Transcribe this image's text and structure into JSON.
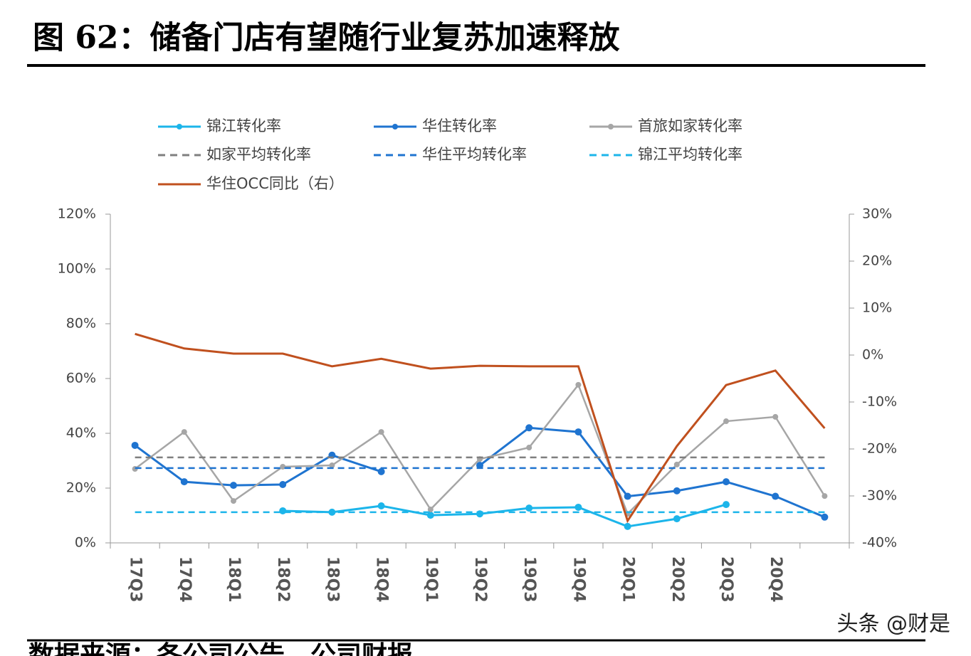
{
  "title": "图 62：储备门店有望随行业复苏加速释放",
  "source": "数据来源：各公司公告，公司财报",
  "watermark": "头条 @财是",
  "chart_data": {
    "type": "line",
    "categories": [
      "17Q3",
      "17Q4",
      "18Q1",
      "18Q2",
      "18Q3",
      "18Q4",
      "19Q1",
      "19Q2",
      "19Q3",
      "19Q4",
      "20Q1",
      "20Q2",
      "20Q3",
      "20Q4",
      null
    ],
    "series": [
      {
        "name": "锦江转化率",
        "color": "#1cb5ea",
        "markers": true,
        "values": [
          null,
          null,
          null,
          11.7,
          11.2,
          13.5,
          10.1,
          10.6,
          12.7,
          13.0,
          6.0,
          8.8,
          14.0,
          null,
          null
        ]
      },
      {
        "name": "华住转化率",
        "color": "#1f74d0",
        "markers": true,
        "values": [
          35.6,
          22.3,
          21.0,
          21.3,
          32.0,
          26.0,
          null,
          28.3,
          42.0,
          40.5,
          17.0,
          19.0,
          22.3,
          17.0,
          9.4
        ]
      },
      {
        "name": "首旅如家转化率",
        "color": "#a6a6a6",
        "markers": true,
        "values": [
          27.0,
          40.5,
          15.3,
          27.8,
          28.3,
          40.5,
          12.2,
          30.6,
          34.8,
          57.7,
          10.6,
          28.6,
          44.4,
          46.0,
          17.1
        ]
      },
      {
        "name": "如家平均转化率",
        "color": "#7f7f7f",
        "dashed": true,
        "value": 31.2
      },
      {
        "name": "华住平均转化率",
        "color": "#1f74d0",
        "dashed": true,
        "value": 27.3
      },
      {
        "name": "锦江平均转化率",
        "color": "#1cb5ea",
        "dashed": true,
        "value": 11.2
      },
      {
        "name": "华住OCC同比（右）",
        "color": "#c0501e",
        "axis": "y2",
        "values": [
          4.5,
          1.4,
          0.3,
          0.3,
          -2.4,
          -0.8,
          -2.9,
          -2.3,
          -2.4,
          -2.4,
          -35.3,
          -19.4,
          -6.4,
          -3.3,
          -15.6
        ]
      }
    ],
    "ylim": [
      0,
      120
    ],
    "yticks": [
      {
        "value": 0,
        "label": "0%"
      },
      {
        "value": 20,
        "label": "20%"
      },
      {
        "value": 40,
        "label": "40%"
      },
      {
        "value": 60,
        "label": "60%"
      },
      {
        "value": 80,
        "label": "80%"
      },
      {
        "value": 100,
        "label": "100%"
      },
      {
        "value": 120,
        "label": "120%"
      }
    ],
    "y2lim": [
      -40,
      30
    ],
    "y2ticks": [
      {
        "value": -40,
        "label": "-40%"
      },
      {
        "value": -30,
        "label": "-30%"
      },
      {
        "value": -20,
        "label": "-20%"
      },
      {
        "value": -10,
        "label": "-10%"
      },
      {
        "value": 0,
        "label": "0%"
      },
      {
        "value": 10,
        "label": "10%"
      },
      {
        "value": 20,
        "label": "20%"
      },
      {
        "value": 30,
        "label": "30%"
      }
    ]
  }
}
